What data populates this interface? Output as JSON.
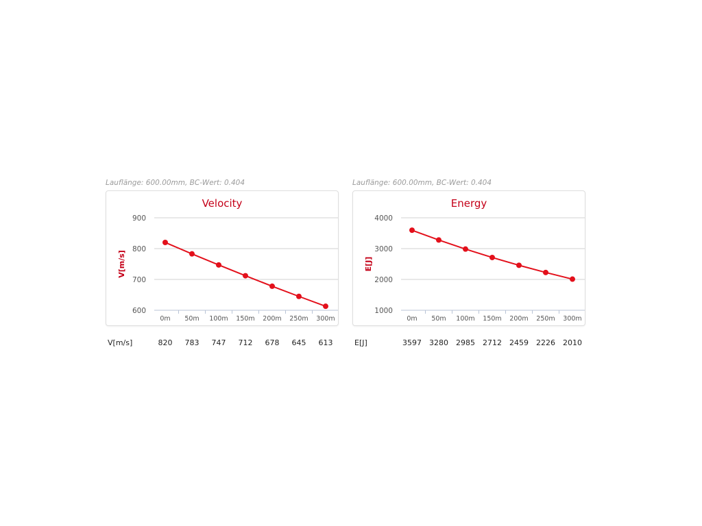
{
  "chart_data": [
    {
      "type": "line",
      "caption": "Lauflänge: 600.00mm, BC-Wert: 0.404",
      "title": "Velocity",
      "ylabel": "V[m/s]",
      "xlabel": "",
      "categories": [
        "0m",
        "50m",
        "100m",
        "150m",
        "200m",
        "250m",
        "300m"
      ],
      "series": [
        {
          "values": [
            820,
            783,
            747,
            712,
            678,
            645,
            613
          ]
        }
      ],
      "ylim": [
        600,
        900
      ],
      "yticks": [
        600,
        700,
        800,
        900
      ],
      "grid": true,
      "table_label": "V[m/s]",
      "table_values": [
        "820",
        "783",
        "747",
        "712",
        "678",
        "645",
        "613"
      ],
      "color": "#e3101b",
      "title_color": "#c40018"
    },
    {
      "type": "line",
      "caption": "Lauflänge: 600.00mm, BC-Wert: 0.404",
      "title": "Energy",
      "ylabel": "E[J]",
      "xlabel": "",
      "categories": [
        "0m",
        "50m",
        "100m",
        "150m",
        "200m",
        "250m",
        "300m"
      ],
      "series": [
        {
          "values": [
            3597,
            3280,
            2985,
            2712,
            2459,
            2226,
            2010
          ]
        }
      ],
      "ylim": [
        1000,
        4000
      ],
      "yticks": [
        1000,
        2000,
        3000,
        4000
      ],
      "grid": true,
      "table_label": "E[J]",
      "table_values": [
        "3597",
        "3280",
        "2985",
        "2712",
        "2459",
        "2226",
        "2010"
      ],
      "color": "#e3101b",
      "title_color": "#c40018"
    }
  ]
}
